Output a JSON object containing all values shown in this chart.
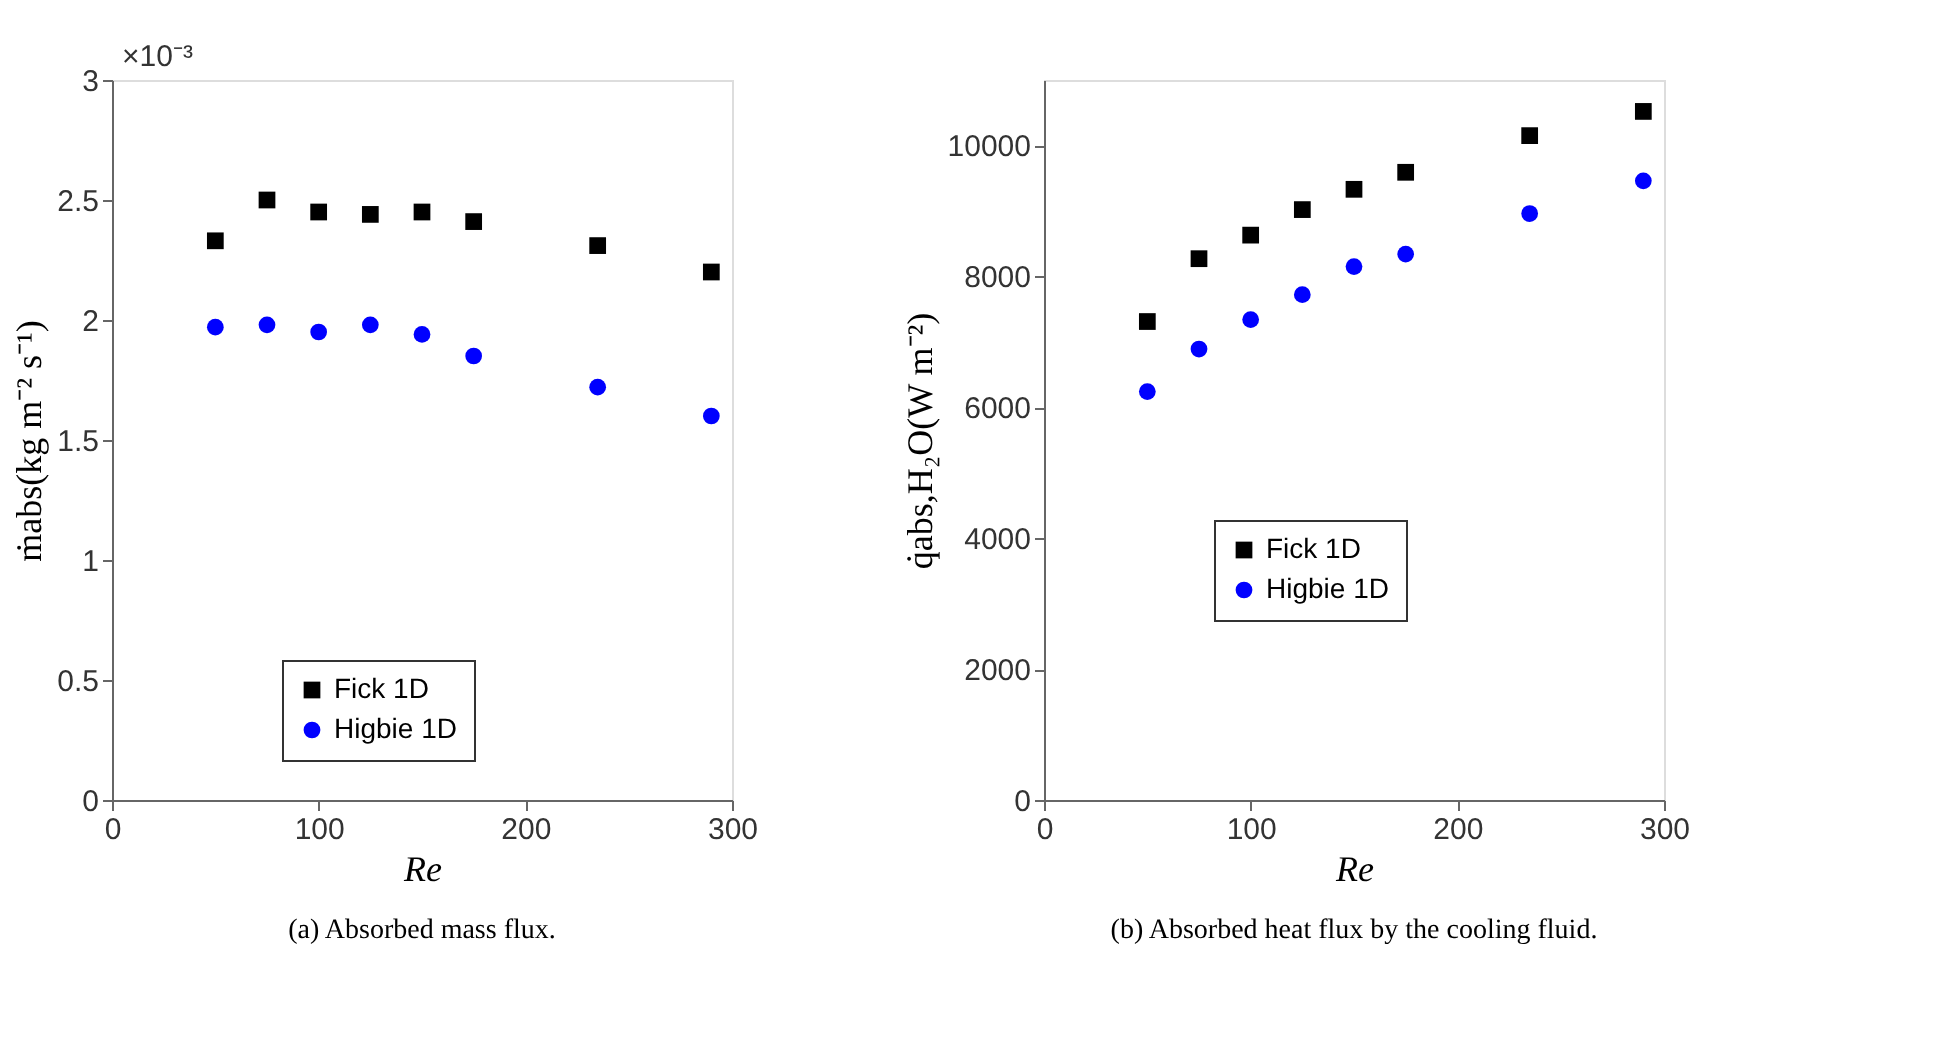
{
  "chart_data": [
    {
      "type": "scatter",
      "title": "(a) Absorbed mass flux.",
      "xlabel": "Re",
      "ylabel": "ṁabs(kg m⁻² s⁻¹)",
      "annotations": [
        "×10⁻³"
      ],
      "x": [
        50,
        75,
        100,
        125,
        150,
        175,
        235,
        290
      ],
      "series": [
        {
          "name": "Fick 1D",
          "color": "#000000",
          "marker": "square",
          "values": [
            2.33,
            2.5,
            2.45,
            2.44,
            2.45,
            2.41,
            2.31,
            2.2
          ]
        },
        {
          "name": "Higbie 1D",
          "color": "#0000ff",
          "marker": "circle",
          "values": [
            1.97,
            1.98,
            1.95,
            1.98,
            1.94,
            1.85,
            1.72,
            1.6
          ]
        }
      ],
      "xlim": [
        0,
        300
      ],
      "xticks": [
        0,
        100,
        200,
        300
      ],
      "ylim": [
        0,
        3
      ],
      "yticks": [
        0,
        0.5,
        1,
        1.5,
        2,
        2.5,
        3
      ],
      "grid": false,
      "legend": "bottom"
    },
    {
      "type": "scatter",
      "title": "(b) Absorbed heat flux by the cooling fluid.",
      "xlabel": "Re",
      "ylabel": "q̇abs,H₂O(W m⁻²)",
      "x": [
        50,
        75,
        100,
        125,
        150,
        175,
        235,
        290
      ],
      "series": [
        {
          "name": "Fick 1D",
          "color": "#000000",
          "marker": "square",
          "values": [
            7310,
            8270,
            8630,
            9020,
            9330,
            9590,
            10150,
            10520
          ]
        },
        {
          "name": "Higbie 1D",
          "color": "#0000ff",
          "marker": "circle",
          "values": [
            6240,
            6890,
            7340,
            7720,
            8150,
            8340,
            8960,
            9460
          ]
        }
      ],
      "xlim": [
        0,
        300
      ],
      "xticks": [
        0,
        100,
        200,
        300
      ],
      "ylim": [
        0,
        11000
      ],
      "yticks": [
        0,
        2000,
        4000,
        6000,
        8000,
        10000
      ],
      "grid": false,
      "legend": "center"
    }
  ]
}
